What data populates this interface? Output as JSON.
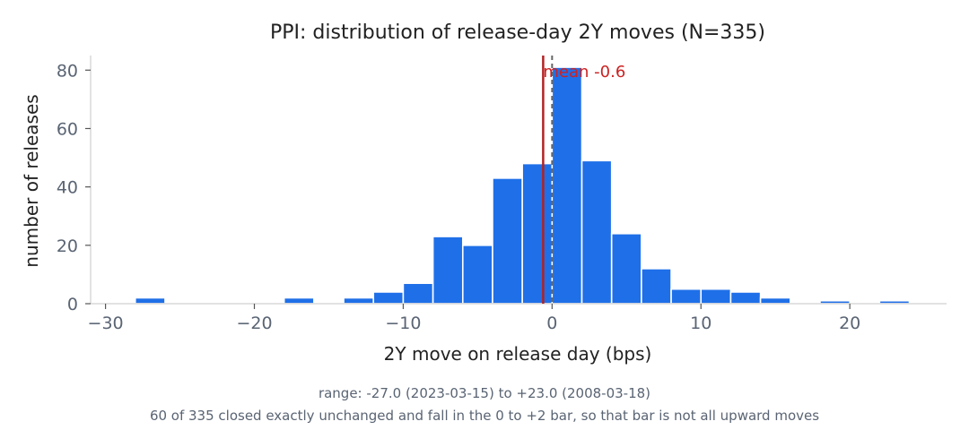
{
  "chart_data": {
    "type": "bar",
    "title": "PPI: distribution of release-day 2Y moves (N=335)",
    "xlabel": "2Y move on release day (bps)",
    "ylabel": "number of releases",
    "xlim": [
      -31,
      26.5
    ],
    "ylim": [
      0,
      85
    ],
    "x_ticks": [
      -30,
      -20,
      -10,
      0,
      10,
      20
    ],
    "y_ticks": [
      0,
      20,
      40,
      60,
      80
    ],
    "bin_width": 2,
    "bins": [
      {
        "x0": -28,
        "x1": -26,
        "count": 2
      },
      {
        "x0": -26,
        "x1": -24,
        "count": 0
      },
      {
        "x0": -24,
        "x1": -22,
        "count": 0
      },
      {
        "x0": -22,
        "x1": -20,
        "count": 0
      },
      {
        "x0": -20,
        "x1": -18,
        "count": 0
      },
      {
        "x0": -18,
        "x1": -16,
        "count": 2
      },
      {
        "x0": -16,
        "x1": -14,
        "count": 0
      },
      {
        "x0": -14,
        "x1": -12,
        "count": 2
      },
      {
        "x0": -12,
        "x1": -10,
        "count": 4
      },
      {
        "x0": -10,
        "x1": -8,
        "count": 7
      },
      {
        "x0": -8,
        "x1": -6,
        "count": 23
      },
      {
        "x0": -6,
        "x1": -4,
        "count": 20
      },
      {
        "x0": -4,
        "x1": -2,
        "count": 43
      },
      {
        "x0": -2,
        "x1": 0,
        "count": 48
      },
      {
        "x0": 0,
        "x1": 2,
        "count": 81
      },
      {
        "x0": 2,
        "x1": 4,
        "count": 49
      },
      {
        "x0": 4,
        "x1": 6,
        "count": 24
      },
      {
        "x0": 6,
        "x1": 8,
        "count": 12
      },
      {
        "x0": 8,
        "x1": 10,
        "count": 5
      },
      {
        "x0": 10,
        "x1": 12,
        "count": 5
      },
      {
        "x0": 12,
        "x1": 14,
        "count": 4
      },
      {
        "x0": 14,
        "x1": 16,
        "count": 2
      },
      {
        "x0": 16,
        "x1": 18,
        "count": 0
      },
      {
        "x0": 18,
        "x1": 20,
        "count": 1
      },
      {
        "x0": 20,
        "x1": 22,
        "count": 0
      },
      {
        "x0": 22,
        "x1": 24,
        "count": 1
      }
    ],
    "mean": -0.6,
    "mean_label": "mean -0.6",
    "zero_line": 0,
    "grid": false,
    "colors": {
      "bar": "#1f6fe8",
      "mean_line": "#b22222",
      "mean_text": "#cc2222",
      "zero_line": "#666666",
      "axis": "#d8d8d8"
    }
  },
  "notes": {
    "line1": "range: -27.0 (2023-03-15) to +23.0 (2008-03-18)",
    "line2": "60 of 335 closed exactly unchanged and fall in the 0 to +2 bar, so that bar is not all upward moves"
  }
}
